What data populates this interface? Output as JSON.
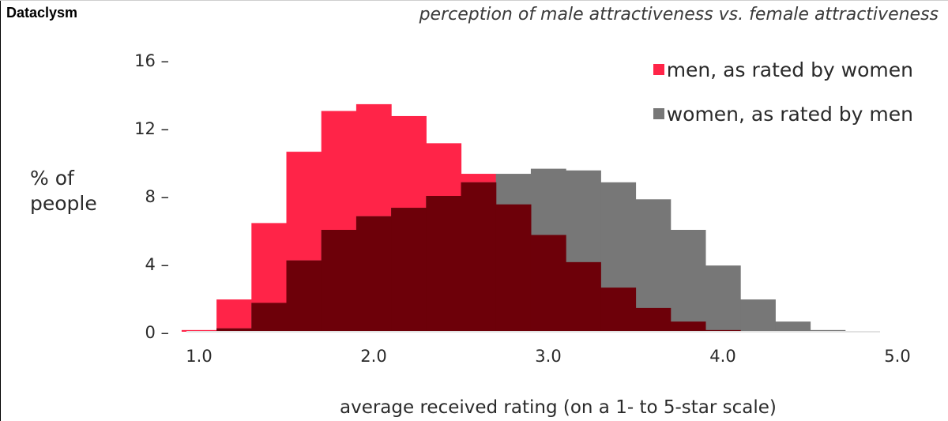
{
  "header": {
    "brand": "Dataclysm",
    "subtitle": "perception of male attractiveness vs. female attractiveness"
  },
  "colors": {
    "men": "#ff2448",
    "women": "#777777",
    "overlap": "#6d0009",
    "text": "#2a2a2a"
  },
  "chart_data": {
    "type": "bar",
    "subtype": "overlapping-histogram",
    "title": "perception of male attractiveness vs. female attractiveness",
    "xlabel": "average received rating (on a 1- to 5-star scale)",
    "ylabel_line1": "% of",
    "ylabel_line2": "people",
    "xlim": [
      0.9,
      5.0
    ],
    "ylim": [
      0,
      16
    ],
    "xticks": [
      1.0,
      2.0,
      3.0,
      4.0,
      5.0
    ],
    "xtick_labels": [
      "1.0",
      "2.0",
      "3.0",
      "4.0",
      "5.0"
    ],
    "yticks": [
      0,
      4,
      8,
      12,
      16
    ],
    "ytick_labels": [
      "0 –",
      "4 –",
      "8 –",
      "12 –",
      "16 –"
    ],
    "bin_edges": [
      0.9,
      1.1,
      1.3,
      1.5,
      1.7,
      1.9,
      2.1,
      2.3,
      2.5,
      2.7,
      2.9,
      3.1,
      3.3,
      3.5,
      3.7,
      3.9,
      4.1,
      4.3,
      4.5,
      4.7,
      4.9
    ],
    "series": [
      {
        "name": "men, as rated by women",
        "values": [
          0.1,
          1.9,
          6.4,
          10.6,
          13.0,
          13.4,
          12.7,
          11.1,
          9.3,
          7.5,
          5.7,
          4.1,
          2.6,
          1.4,
          0.6,
          0.1,
          0,
          0,
          0,
          0
        ]
      },
      {
        "name": "women, as rated by men",
        "values": [
          0,
          0.2,
          1.7,
          4.2,
          6.0,
          6.8,
          7.3,
          8.0,
          8.8,
          9.3,
          9.6,
          9.5,
          8.8,
          7.8,
          6.0,
          3.9,
          1.9,
          0.6,
          0.1,
          0
        ]
      }
    ]
  }
}
